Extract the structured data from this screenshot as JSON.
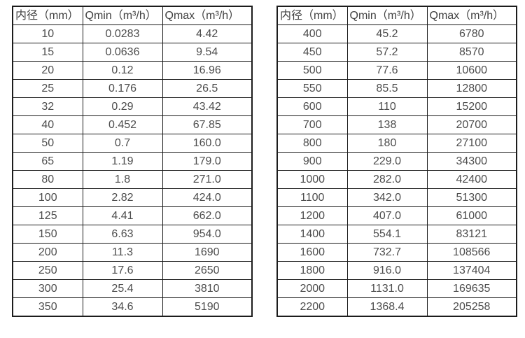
{
  "page": {
    "background": "#ffffff"
  },
  "colors": {
    "table_border": "#1c1c1c",
    "header_text": "#414141",
    "cell_text": "#4d4d4d",
    "cell_background": "#ffffff"
  },
  "tables": [
    {
      "name": "flow-range-table-small-diameters",
      "headers": [
        "内径（mm）",
        "Qmin（m³/h）",
        "Qmax（m³/h）"
      ],
      "rows": [
        [
          "10",
          "0.0283",
          "4.42"
        ],
        [
          "15",
          "0.0636",
          "9.54"
        ],
        [
          "20",
          "0.12",
          "16.96"
        ],
        [
          "25",
          "0.176",
          "26.5"
        ],
        [
          "32",
          "0.29",
          "43.42"
        ],
        [
          "40",
          "0.452",
          "67.85"
        ],
        [
          "50",
          "0.7",
          "160.0"
        ],
        [
          "65",
          "1.19",
          "179.0"
        ],
        [
          "80",
          "1.8",
          "271.0"
        ],
        [
          "100",
          "2.82",
          "424.0"
        ],
        [
          "125",
          "4.41",
          "662.0"
        ],
        [
          "150",
          "6.63",
          "954.0"
        ],
        [
          "200",
          "11.3",
          "1690"
        ],
        [
          "250",
          "17.6",
          "2650"
        ],
        [
          "300",
          "25.4",
          "3810"
        ],
        [
          "350",
          "34.6",
          "5190"
        ]
      ]
    },
    {
      "name": "flow-range-table-large-diameters",
      "headers": [
        "内径（mm）",
        "Qmin（m³/h）",
        "Qmax（m³/h）"
      ],
      "rows": [
        [
          "400",
          "45.2",
          "6780"
        ],
        [
          "450",
          "57.2",
          "8570"
        ],
        [
          "500",
          "77.6",
          "10600"
        ],
        [
          "550",
          "85.5",
          "12800"
        ],
        [
          "600",
          "110",
          "15200"
        ],
        [
          "700",
          "138",
          "20700"
        ],
        [
          "800",
          "180",
          "27100"
        ],
        [
          "900",
          "229.0",
          "34300"
        ],
        [
          "1000",
          "282.0",
          "42400"
        ],
        [
          "1100",
          "342.0",
          "51300"
        ],
        [
          "1200",
          "407.0",
          "61000"
        ],
        [
          "1400",
          "554.1",
          "83121"
        ],
        [
          "1600",
          "732.7",
          "108566"
        ],
        [
          "1800",
          "916.0",
          "137404"
        ],
        [
          "2000",
          "1131.0",
          "169635"
        ],
        [
          "2200",
          "1368.4",
          "205258"
        ]
      ]
    }
  ]
}
